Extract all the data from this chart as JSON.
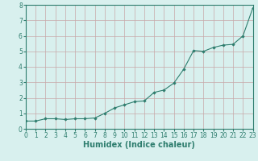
{
  "x_full": [
    0,
    1,
    2,
    3,
    4,
    5,
    6,
    7,
    8,
    9,
    10,
    11,
    12,
    13,
    14,
    15,
    16,
    17,
    18,
    19,
    20,
    21,
    22,
    23
  ],
  "y_full": [
    0.5,
    0.5,
    0.65,
    0.65,
    0.6,
    0.65,
    0.65,
    0.7,
    1.0,
    1.35,
    1.55,
    1.75,
    1.8,
    2.35,
    2.5,
    2.95,
    3.85,
    5.05,
    5.0,
    5.25,
    5.4,
    5.45,
    6.0,
    7.8
  ],
  "line_color": "#2e7d6e",
  "marker_color": "#2e7d6e",
  "bg_color": "#d8f0ee",
  "grid_color": "#c8a8a8",
  "axis_color": "#2e7d6e",
  "tick_color": "#2e7d6e",
  "xlabel": "Humidex (Indice chaleur)",
  "ylim": [
    0,
    8
  ],
  "xlim": [
    0,
    23
  ],
  "yticks": [
    0,
    1,
    2,
    3,
    4,
    5,
    6,
    7,
    8
  ],
  "xticks": [
    0,
    1,
    2,
    3,
    4,
    5,
    6,
    7,
    8,
    9,
    10,
    11,
    12,
    13,
    14,
    15,
    16,
    17,
    18,
    19,
    20,
    21,
    22,
    23
  ],
  "xlabel_fontsize": 7,
  "tick_fontsize": 5.5
}
